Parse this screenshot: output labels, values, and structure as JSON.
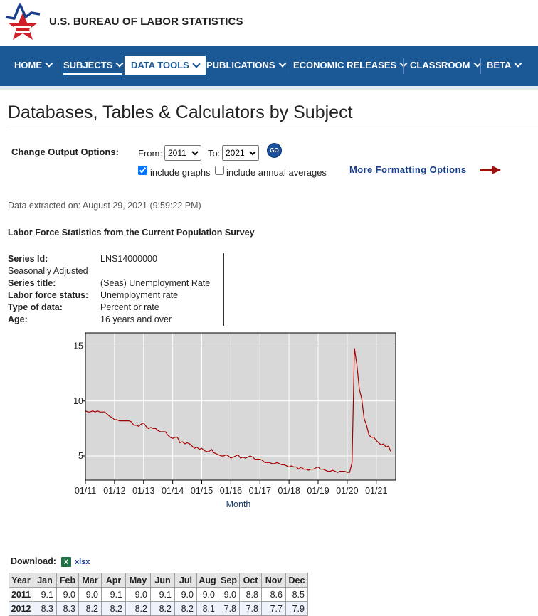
{
  "header": {
    "agency_name": "U.S. BUREAU OF LABOR STATISTICS"
  },
  "nav": {
    "items": [
      {
        "label": "HOME"
      },
      {
        "label": "SUBJECTS"
      },
      {
        "label": "DATA TOOLS"
      },
      {
        "label": "PUBLICATIONS"
      },
      {
        "label": "ECONOMIC RELEASES"
      },
      {
        "label": "CLASSROOM"
      },
      {
        "label": "BETA"
      }
    ]
  },
  "page": {
    "title": "Databases, Tables & Calculators by Subject"
  },
  "options": {
    "label": "Change Output Options:",
    "from_label": "From:",
    "from_value": "2011",
    "to_label": "To:",
    "to_value": "2021",
    "go_label": "GO",
    "include_graphs_label": "include graphs",
    "include_graphs_checked": true,
    "include_annual_label": "include annual averages",
    "include_annual_checked": false,
    "more_formatting_label": "More Formatting Options"
  },
  "extracted": "Data extracted on: August 29, 2021 (9:59:22 PM)",
  "survey_title": "Labor Force Statistics from the Current Population Survey",
  "series_meta": [
    {
      "label": "Series Id:",
      "value": "LNS14000000"
    },
    {
      "label": "Seasonally Adjusted",
      "value": ""
    },
    {
      "label": "Series title:",
      "value": "(Seas) Unemployment Rate"
    },
    {
      "label": "Labor force status:",
      "value": "Unemployment rate"
    },
    {
      "label": "Type of data:",
      "value": "Percent or rate"
    },
    {
      "label": "Age:",
      "value": "16 years and over"
    }
  ],
  "chart_data": {
    "type": "line",
    "xlabel": "Month",
    "ylabel": "",
    "title": "",
    "ylim": [
      2.8,
      16.2
    ],
    "yticks": [
      5,
      10,
      15
    ],
    "xticks": [
      "01/11",
      "01/12",
      "01/13",
      "01/14",
      "01/15",
      "01/16",
      "01/17",
      "01/18",
      "01/19",
      "01/20",
      "01/21"
    ],
    "grid": true,
    "line_color": "#a40000",
    "plot_bg": "#d8d8d8",
    "series": [
      {
        "x_start": "2011-01",
        "values": [
          9.1,
          9.0,
          9.0,
          9.1,
          9.0,
          9.1,
          9.0,
          9.0,
          9.0,
          8.8,
          8.6,
          8.5,
          8.3,
          8.3,
          8.2,
          8.2,
          8.2,
          8.2,
          8.2,
          8.1,
          7.8,
          7.8,
          7.7,
          7.9,
          8.0,
          7.7,
          7.5,
          7.6,
          7.5,
          7.5,
          7.3,
          7.2,
          7.2,
          7.2,
          6.9,
          6.7,
          6.6,
          6.7,
          6.7,
          6.2,
          6.3,
          6.1,
          6.2,
          6.1,
          5.9,
          5.7,
          5.8,
          5.6,
          5.7,
          5.5,
          5.4,
          5.4,
          5.6,
          5.3,
          5.2,
          5.1,
          5.0,
          5.0,
          5.1,
          5.0,
          4.8,
          4.9,
          5.0,
          5.1,
          4.8,
          4.9,
          4.8,
          4.9,
          5.0,
          4.9,
          4.7,
          4.7,
          4.7,
          4.6,
          4.4,
          4.4,
          4.4,
          4.3,
          4.3,
          4.4,
          4.3,
          4.2,
          4.2,
          4.1,
          4.0,
          4.1,
          4.0,
          4.0,
          3.8,
          4.0,
          3.8,
          3.8,
          3.7,
          3.8,
          3.8,
          3.9,
          4.0,
          3.8,
          3.8,
          3.7,
          3.6,
          3.6,
          3.7,
          3.6,
          3.5,
          3.6,
          3.6,
          3.6,
          3.5,
          3.5,
          4.4,
          14.8,
          13.3,
          11.1,
          10.2,
          8.4,
          7.8,
          6.9,
          6.7,
          6.7,
          6.4,
          6.2,
          6.0,
          6.1,
          5.8,
          5.9,
          5.4
        ]
      }
    ]
  },
  "download": {
    "label": "Download:",
    "icon": "excel-icon",
    "icon_text": "X",
    "link_label": "xlsx"
  },
  "table": {
    "headers": [
      "Year",
      "Jan",
      "Feb",
      "Mar",
      "Apr",
      "May",
      "Jun",
      "Jul",
      "Aug",
      "Sep",
      "Oct",
      "Nov",
      "Dec"
    ],
    "rows": [
      {
        "year": "2011",
        "values": [
          "9.1",
          "9.0",
          "9.0",
          "9.1",
          "9.0",
          "9.1",
          "9.0",
          "9.0",
          "9.0",
          "8.8",
          "8.6",
          "8.5"
        ]
      },
      {
        "year": "2012",
        "values": [
          "8.3",
          "8.3",
          "8.2",
          "8.2",
          "8.2",
          "8.2",
          "8.2",
          "8.1",
          "7.8",
          "7.8",
          "7.7",
          "7.9"
        ]
      }
    ]
  }
}
